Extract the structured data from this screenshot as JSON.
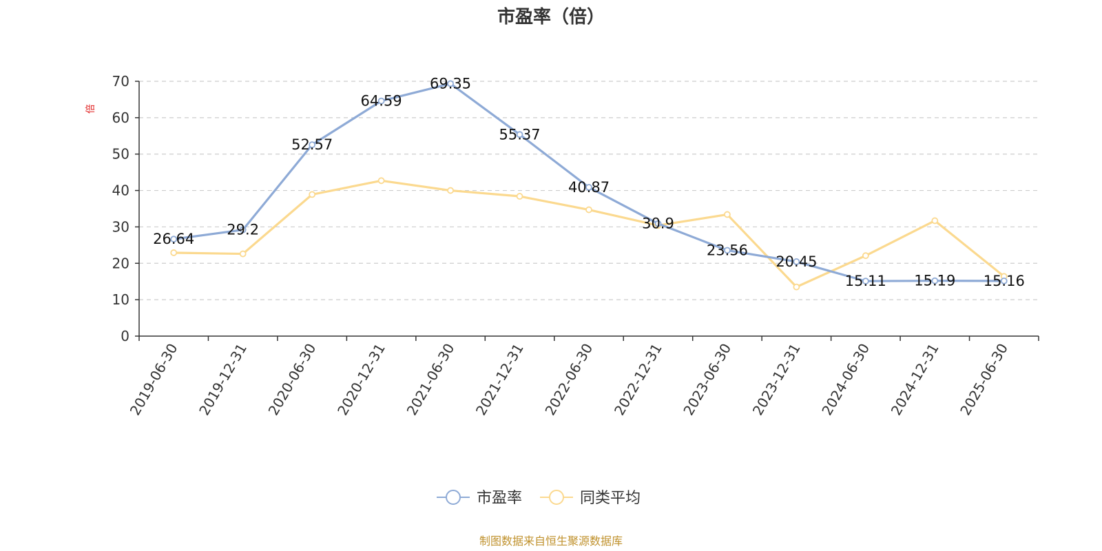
{
  "chart_data": {
    "type": "line",
    "title": "市盈率（倍）",
    "ylabel": "倍",
    "ylim": [
      0,
      70
    ],
    "yticks": [
      0,
      10,
      20,
      30,
      40,
      50,
      60,
      70
    ],
    "grid": true,
    "legend_position": "bottom-center",
    "categories": [
      "2019-06-30",
      "2019-12-31",
      "2020-06-30",
      "2020-12-31",
      "2021-06-30",
      "2021-12-31",
      "2022-06-30",
      "2022-12-31",
      "2023-06-30",
      "2023-12-31",
      "2024-06-30",
      "2024-12-31",
      "2025-06-30"
    ],
    "series": [
      {
        "name": "市盈率",
        "color": "#8eaad6",
        "values": [
          26.64,
          29.2,
          52.57,
          64.59,
          69.35,
          55.37,
          40.87,
          30.9,
          23.56,
          20.45,
          15.11,
          15.19,
          15.16
        ],
        "labels": [
          "26.64",
          "29.2",
          "52.57",
          "64.59",
          "69.35",
          "55.37",
          "40.87",
          "30.9",
          "23.56",
          "20.45",
          "15.11",
          "15.19",
          "15.16"
        ]
      },
      {
        "name": "同类平均",
        "color": "#fbd98f",
        "values": [
          22.9,
          22.6,
          38.9,
          42.7,
          40.0,
          38.4,
          34.7,
          30.4,
          33.4,
          13.5,
          22.1,
          31.7,
          16.4
        ]
      }
    ],
    "source": "制图数据来自恒生聚源数据库",
    "source_color": "#c0922e",
    "ylabel_color": "#e02020"
  }
}
